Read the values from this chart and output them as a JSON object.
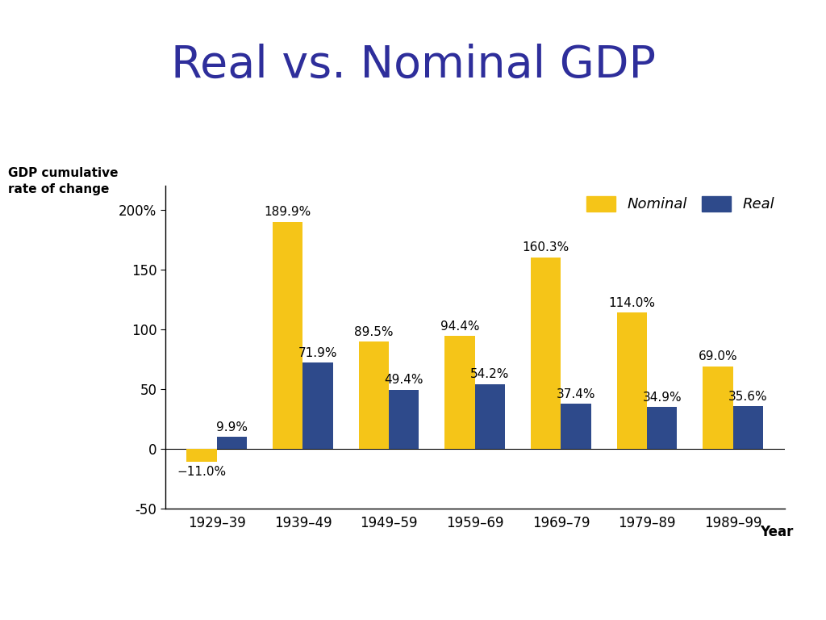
{
  "title": "Real vs. Nominal GDP",
  "title_color": "#2e2e9b",
  "title_fontsize": 40,
  "categories": [
    "1929–39",
    "1939–49",
    "1949–59",
    "1959–69",
    "1969–79",
    "1979–89",
    "1989–99"
  ],
  "nominal_values": [
    -11.0,
    189.9,
    89.5,
    94.4,
    160.3,
    114.0,
    69.0
  ],
  "real_values": [
    9.9,
    71.9,
    49.4,
    54.2,
    37.4,
    34.9,
    35.6
  ],
  "nominal_color": "#F5C518",
  "real_color": "#2E4A8B",
  "ylabel_line1": "GDP cumulative",
  "ylabel_line2": "rate of change",
  "xlabel": "Year",
  "ylim": [
    -50,
    220
  ],
  "yticks": [
    -50,
    0,
    50,
    100,
    150,
    200
  ],
  "ytick_labels": [
    "-50",
    "0",
    "50",
    "100",
    "150",
    "200%"
  ],
  "background_color": "#ffffff",
  "bar_width": 0.35,
  "legend_labels": [
    "Nominal",
    "Real"
  ],
  "label_fontsize": 11,
  "axis_label_fontsize": 11,
  "tick_fontsize": 12
}
